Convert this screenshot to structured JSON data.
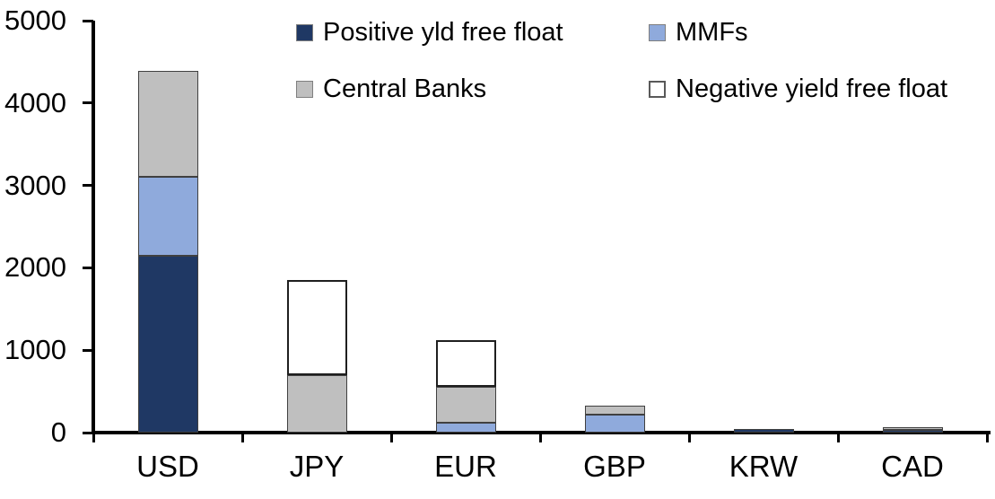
{
  "chart_data": {
    "type": "bar",
    "variant": "stacked",
    "title": "",
    "categories": [
      "USD",
      "JPY",
      "EUR",
      "GBP",
      "KRW",
      "CAD"
    ],
    "series": [
      {
        "name": "Positive yld free float",
        "color": "#1F3864",
        "values": [
          2150,
          0,
          0,
          0,
          45,
          30
        ]
      },
      {
        "name": "MMFs",
        "color": "#8FAADC",
        "values": [
          950,
          0,
          115,
          215,
          0,
          0
        ]
      },
      {
        "name": "Central Banks",
        "color": "#BFBFBF",
        "values": [
          1290,
          700,
          440,
          110,
          0,
          30
        ]
      },
      {
        "name": "Negative yield free float",
        "color": "#FFFFFF",
        "values": [
          0,
          1150,
          565,
          0,
          0,
          0
        ]
      }
    ],
    "xlabel": "",
    "ylabel": "",
    "ylim": [
      0,
      5000
    ],
    "yticks": [
      "0",
      "1000",
      "2000",
      "3000",
      "4000",
      "5000"
    ],
    "grid": false,
    "legend_position": "top",
    "axis_color": "#000000"
  }
}
